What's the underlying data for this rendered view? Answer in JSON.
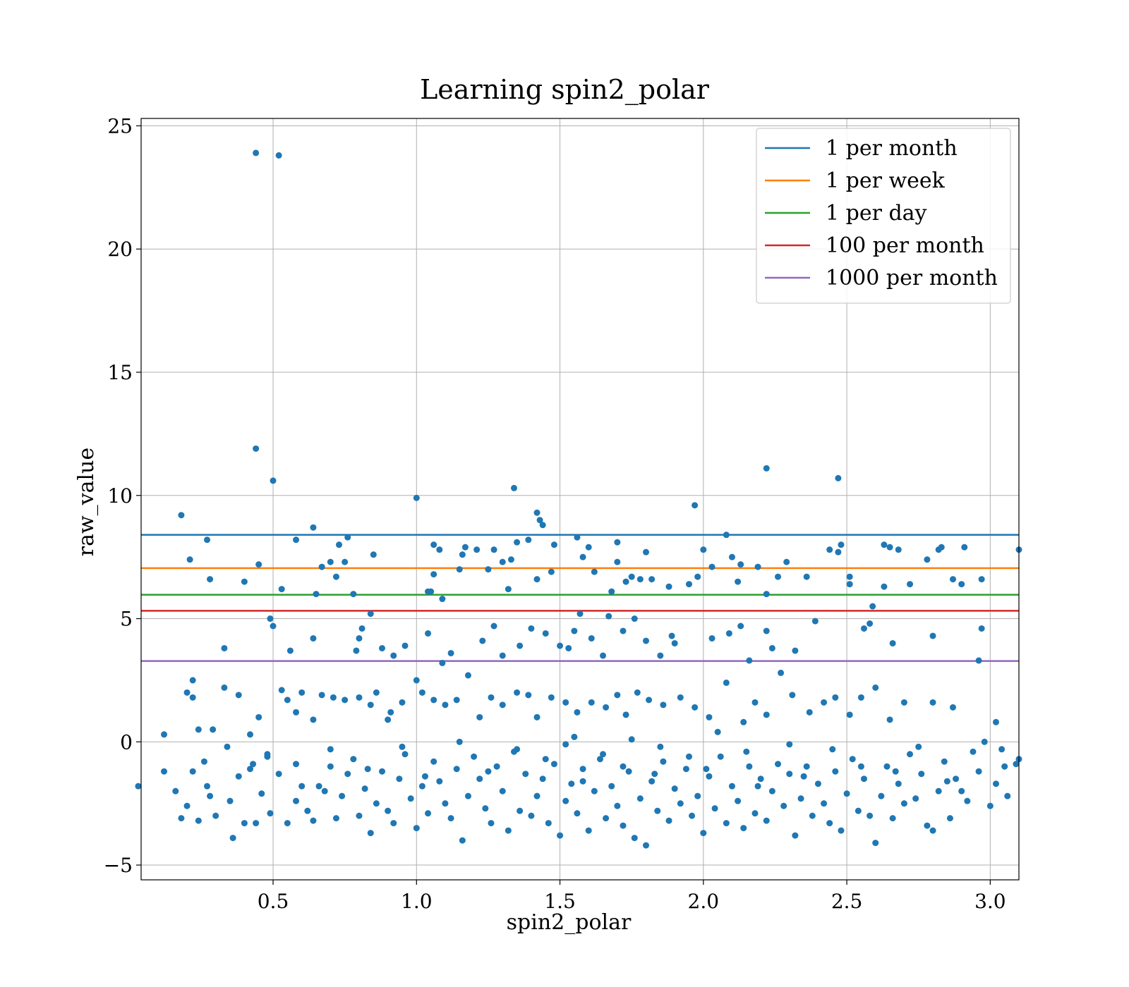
{
  "chart_data": {
    "type": "scatter",
    "title": "Learning spin2_polar",
    "xlabel": "spin2_polar",
    "ylabel": "raw_value",
    "xlim": [
      0.04,
      3.1
    ],
    "ylim": [
      -5.6,
      25.3
    ],
    "xticks": [
      0.5,
      1.0,
      1.5,
      2.0,
      2.5,
      3.0
    ],
    "xtick_labels": [
      "0.5",
      "1.0",
      "1.5",
      "2.0",
      "2.5",
      "3.0"
    ],
    "yticks": [
      -5,
      0,
      5,
      10,
      15,
      20,
      25
    ],
    "ytick_labels": [
      "−5",
      "0",
      "5",
      "10",
      "15",
      "20",
      "25"
    ],
    "grid": true,
    "legend_position": "top-right",
    "point_color": "#1f77b4",
    "thresholds": [
      {
        "name": "1 per month",
        "value": 8.4,
        "color": "#1f77b4"
      },
      {
        "name": "1 per week",
        "value": 7.05,
        "color": "#ff7f0e"
      },
      {
        "name": "1 per day",
        "value": 5.97,
        "color": "#2ca02c"
      },
      {
        "name": "100 per month",
        "value": 5.32,
        "color": "#d62728"
      },
      {
        "name": "1000 per month",
        "value": 3.28,
        "color": "#9467bd"
      }
    ],
    "points": [
      [
        0.44,
        23.9
      ],
      [
        0.52,
        23.8
      ],
      [
        0.44,
        11.9
      ],
      [
        0.5,
        10.6
      ],
      [
        0.18,
        9.2
      ],
      [
        1.0,
        9.9
      ],
      [
        1.34,
        10.3
      ],
      [
        1.42,
        9.3
      ],
      [
        1.43,
        9.0
      ],
      [
        1.44,
        8.8
      ],
      [
        1.97,
        9.6
      ],
      [
        2.22,
        11.1
      ],
      [
        2.47,
        10.7
      ],
      [
        0.27,
        8.2
      ],
      [
        0.58,
        8.2
      ],
      [
        0.64,
        8.7
      ],
      [
        0.76,
        8.3
      ],
      [
        0.73,
        8.0
      ],
      [
        0.21,
        7.4
      ],
      [
        0.45,
        7.2
      ],
      [
        0.4,
        6.5
      ],
      [
        0.28,
        6.6
      ],
      [
        0.53,
        6.2
      ],
      [
        0.65,
        6.0
      ],
      [
        0.67,
        7.1
      ],
      [
        0.7,
        7.3
      ],
      [
        0.72,
        6.7
      ],
      [
        0.75,
        7.3
      ],
      [
        0.78,
        6.0
      ],
      [
        0.85,
        7.6
      ],
      [
        1.06,
        8.0
      ],
      [
        1.08,
        7.8
      ],
      [
        1.06,
        6.8
      ],
      [
        1.04,
        6.1
      ],
      [
        1.05,
        6.1
      ],
      [
        1.09,
        5.8
      ],
      [
        1.15,
        7.0
      ],
      [
        1.16,
        7.6
      ],
      [
        1.17,
        7.9
      ],
      [
        1.21,
        7.8
      ],
      [
        1.25,
        7.0
      ],
      [
        1.27,
        7.8
      ],
      [
        1.3,
        7.3
      ],
      [
        1.33,
        7.4
      ],
      [
        1.35,
        8.1
      ],
      [
        1.32,
        6.2
      ],
      [
        1.39,
        8.2
      ],
      [
        1.42,
        6.6
      ],
      [
        1.48,
        8.0
      ],
      [
        1.47,
        6.9
      ],
      [
        1.56,
        8.3
      ],
      [
        1.58,
        7.5
      ],
      [
        1.6,
        7.9
      ],
      [
        1.62,
        6.9
      ],
      [
        1.7,
        8.1
      ],
      [
        1.7,
        7.3
      ],
      [
        1.68,
        6.1
      ],
      [
        1.73,
        6.5
      ],
      [
        1.75,
        6.7
      ],
      [
        1.78,
        6.6
      ],
      [
        1.8,
        7.7
      ],
      [
        1.82,
        6.6
      ],
      [
        1.88,
        6.3
      ],
      [
        1.95,
        6.4
      ],
      [
        1.98,
        6.7
      ],
      [
        2.0,
        7.8
      ],
      [
        2.03,
        7.1
      ],
      [
        2.08,
        8.4
      ],
      [
        2.1,
        7.5
      ],
      [
        2.12,
        6.5
      ],
      [
        2.13,
        7.2
      ],
      [
        2.19,
        7.1
      ],
      [
        2.22,
        6.0
      ],
      [
        2.26,
        6.7
      ],
      [
        2.29,
        7.3
      ],
      [
        2.36,
        6.7
      ],
      [
        2.44,
        7.8
      ],
      [
        2.47,
        7.7
      ],
      [
        2.48,
        8.0
      ],
      [
        2.51,
        6.7
      ],
      [
        2.51,
        6.4
      ],
      [
        2.63,
        8.0
      ],
      [
        2.65,
        7.9
      ],
      [
        2.68,
        7.8
      ],
      [
        2.72,
        6.4
      ],
      [
        2.78,
        7.4
      ],
      [
        2.82,
        7.8
      ],
      [
        2.83,
        7.9
      ],
      [
        2.87,
        6.6
      ],
      [
        2.9,
        6.4
      ],
      [
        2.91,
        7.9
      ],
      [
        2.97,
        6.6
      ],
      [
        3.1,
        7.8
      ],
      [
        2.63,
        6.3
      ],
      [
        2.59,
        5.5
      ],
      [
        0.49,
        5.0
      ],
      [
        0.5,
        4.7
      ],
      [
        0.33,
        3.8
      ],
      [
        0.56,
        3.7
      ],
      [
        0.64,
        4.2
      ],
      [
        0.84,
        5.2
      ],
      [
        0.81,
        4.6
      ],
      [
        0.8,
        4.2
      ],
      [
        0.79,
        3.7
      ],
      [
        0.88,
        3.8
      ],
      [
        0.92,
        3.5
      ],
      [
        0.96,
        3.9
      ],
      [
        1.04,
        4.4
      ],
      [
        1.09,
        3.2
      ],
      [
        1.12,
        3.6
      ],
      [
        1.23,
        4.1
      ],
      [
        1.27,
        4.7
      ],
      [
        1.3,
        3.5
      ],
      [
        1.36,
        3.9
      ],
      [
        1.4,
        4.6
      ],
      [
        1.45,
        4.4
      ],
      [
        1.5,
        3.9
      ],
      [
        1.53,
        3.8
      ],
      [
        1.55,
        4.5
      ],
      [
        1.57,
        5.2
      ],
      [
        1.61,
        4.2
      ],
      [
        1.65,
        3.5
      ],
      [
        1.67,
        5.1
      ],
      [
        1.72,
        4.5
      ],
      [
        1.76,
        5.0
      ],
      [
        1.8,
        4.1
      ],
      [
        1.85,
        3.5
      ],
      [
        1.89,
        4.3
      ],
      [
        1.9,
        4.0
      ],
      [
        2.03,
        4.2
      ],
      [
        2.09,
        4.4
      ],
      [
        2.13,
        4.7
      ],
      [
        2.22,
        4.5
      ],
      [
        2.24,
        3.8
      ],
      [
        2.32,
        3.7
      ],
      [
        2.39,
        4.9
      ],
      [
        2.56,
        4.6
      ],
      [
        2.58,
        4.8
      ],
      [
        2.66,
        4.0
      ],
      [
        2.8,
        4.3
      ],
      [
        2.97,
        4.6
      ],
      [
        2.96,
        3.3
      ],
      [
        2.16,
        3.3
      ],
      [
        0.2,
        2.0
      ],
      [
        0.22,
        1.8
      ],
      [
        0.22,
        2.5
      ],
      [
        0.24,
        0.5
      ],
      [
        0.29,
        0.5
      ],
      [
        0.33,
        2.2
      ],
      [
        0.38,
        1.9
      ],
      [
        0.45,
        1.0
      ],
      [
        0.53,
        2.1
      ],
      [
        0.55,
        1.7
      ],
      [
        0.58,
        1.2
      ],
      [
        0.6,
        2.0
      ],
      [
        0.64,
        0.9
      ],
      [
        0.67,
        1.9
      ],
      [
        0.71,
        1.8
      ],
      [
        0.75,
        1.7
      ],
      [
        0.8,
        1.8
      ],
      [
        0.84,
        1.5
      ],
      [
        0.86,
        2.0
      ],
      [
        0.91,
        1.2
      ],
      [
        0.95,
        1.6
      ],
      [
        1.0,
        2.5
      ],
      [
        1.02,
        2.0
      ],
      [
        1.06,
        1.7
      ],
      [
        1.1,
        1.5
      ],
      [
        1.14,
        1.7
      ],
      [
        1.18,
        2.7
      ],
      [
        1.22,
        1.0
      ],
      [
        1.26,
        1.8
      ],
      [
        1.3,
        1.5
      ],
      [
        1.35,
        2.0
      ],
      [
        1.39,
        1.9
      ],
      [
        1.42,
        1.0
      ],
      [
        1.47,
        1.8
      ],
      [
        1.52,
        1.6
      ],
      [
        1.56,
        1.2
      ],
      [
        1.61,
        1.6
      ],
      [
        1.66,
        1.4
      ],
      [
        1.7,
        1.9
      ],
      [
        1.73,
        1.1
      ],
      [
        1.77,
        2.0
      ],
      [
        1.81,
        1.7
      ],
      [
        1.86,
        1.5
      ],
      [
        1.92,
        1.8
      ],
      [
        1.97,
        1.4
      ],
      [
        2.02,
        1.0
      ],
      [
        2.08,
        2.4
      ],
      [
        2.14,
        0.8
      ],
      [
        2.18,
        1.6
      ],
      [
        2.22,
        1.1
      ],
      [
        2.27,
        2.8
      ],
      [
        2.31,
        1.9
      ],
      [
        2.37,
        1.2
      ],
      [
        2.42,
        1.6
      ],
      [
        2.46,
        1.8
      ],
      [
        2.51,
        1.1
      ],
      [
        2.55,
        1.8
      ],
      [
        2.6,
        2.2
      ],
      [
        2.7,
        1.6
      ],
      [
        2.8,
        1.6
      ],
      [
        2.87,
        1.4
      ],
      [
        3.02,
        0.8
      ],
      [
        0.12,
        0.3
      ],
      [
        0.42,
        0.3
      ],
      [
        0.9,
        0.9
      ],
      [
        1.55,
        0.2
      ],
      [
        2.05,
        0.4
      ],
      [
        2.65,
        0.9
      ],
      [
        0.03,
        -1.8
      ],
      [
        0.12,
        -1.2
      ],
      [
        0.16,
        -2.0
      ],
      [
        0.18,
        -3.1
      ],
      [
        0.2,
        -2.6
      ],
      [
        0.22,
        -1.2
      ],
      [
        0.24,
        -3.2
      ],
      [
        0.26,
        -0.8
      ],
      [
        0.27,
        -1.8
      ],
      [
        0.28,
        -2.2
      ],
      [
        0.3,
        -3.0
      ],
      [
        0.34,
        -0.2
      ],
      [
        0.35,
        -2.4
      ],
      [
        0.36,
        -3.9
      ],
      [
        0.38,
        -1.4
      ],
      [
        0.4,
        -3.3
      ],
      [
        0.42,
        -1.1
      ],
      [
        0.43,
        -0.9
      ],
      [
        0.44,
        -3.3
      ],
      [
        0.46,
        -2.1
      ],
      [
        0.48,
        -0.5
      ],
      [
        0.49,
        -2.9
      ],
      [
        0.52,
        -1.3
      ],
      [
        0.55,
        -3.3
      ],
      [
        0.58,
        -2.4
      ],
      [
        0.6,
        -1.8
      ],
      [
        0.62,
        -2.8
      ],
      [
        0.64,
        -3.2
      ],
      [
        0.66,
        -1.8
      ],
      [
        0.68,
        -2.0
      ],
      [
        0.7,
        -1.0
      ],
      [
        0.72,
        -3.1
      ],
      [
        0.74,
        -2.2
      ],
      [
        0.76,
        -1.3
      ],
      [
        0.78,
        -0.7
      ],
      [
        0.8,
        -3.0
      ],
      [
        0.82,
        -1.9
      ],
      [
        0.84,
        -3.7
      ],
      [
        0.86,
        -2.5
      ],
      [
        0.88,
        -1.2
      ],
      [
        0.9,
        -2.8
      ],
      [
        0.92,
        -3.3
      ],
      [
        0.94,
        -1.5
      ],
      [
        0.96,
        -0.5
      ],
      [
        0.98,
        -2.3
      ],
      [
        1.0,
        -3.5
      ],
      [
        1.02,
        -1.8
      ],
      [
        1.04,
        -2.9
      ],
      [
        1.06,
        -0.8
      ],
      [
        1.08,
        -1.6
      ],
      [
        1.1,
        -2.5
      ],
      [
        1.12,
        -3.1
      ],
      [
        1.14,
        -1.1
      ],
      [
        1.16,
        -4.0
      ],
      [
        1.18,
        -2.2
      ],
      [
        1.2,
        -0.6
      ],
      [
        1.22,
        -1.5
      ],
      [
        1.24,
        -2.7
      ],
      [
        1.26,
        -3.3
      ],
      [
        1.28,
        -1.0
      ],
      [
        1.3,
        -2.0
      ],
      [
        1.32,
        -3.6
      ],
      [
        1.34,
        -0.4
      ],
      [
        1.36,
        -2.8
      ],
      [
        1.38,
        -1.3
      ],
      [
        1.4,
        -3.0
      ],
      [
        1.42,
        -2.2
      ],
      [
        1.44,
        -1.5
      ],
      [
        1.46,
        -3.3
      ],
      [
        1.48,
        -0.9
      ],
      [
        1.5,
        -3.8
      ],
      [
        1.52,
        -2.4
      ],
      [
        1.54,
        -1.7
      ],
      [
        1.56,
        -2.9
      ],
      [
        1.58,
        -1.1
      ],
      [
        1.6,
        -3.6
      ],
      [
        1.62,
        -2.0
      ],
      [
        1.64,
        -0.7
      ],
      [
        1.66,
        -3.1
      ],
      [
        1.68,
        -1.8
      ],
      [
        1.7,
        -2.6
      ],
      [
        1.72,
        -3.4
      ],
      [
        1.74,
        -1.2
      ],
      [
        1.76,
        -3.9
      ],
      [
        1.78,
        -2.3
      ],
      [
        1.8,
        -4.2
      ],
      [
        1.82,
        -1.6
      ],
      [
        1.84,
        -2.8
      ],
      [
        1.86,
        -0.8
      ],
      [
        1.88,
        -3.2
      ],
      [
        1.9,
        -1.9
      ],
      [
        1.92,
        -2.5
      ],
      [
        1.94,
        -1.1
      ],
      [
        1.96,
        -3.0
      ],
      [
        1.98,
        -2.2
      ],
      [
        2.0,
        -3.7
      ],
      [
        2.02,
        -1.4
      ],
      [
        2.04,
        -2.7
      ],
      [
        2.06,
        -0.6
      ],
      [
        2.08,
        -3.3
      ],
      [
        2.1,
        -1.8
      ],
      [
        2.12,
        -2.4
      ],
      [
        2.14,
        -3.5
      ],
      [
        2.16,
        -1.0
      ],
      [
        2.18,
        -2.9
      ],
      [
        2.2,
        -1.5
      ],
      [
        2.22,
        -3.2
      ],
      [
        2.24,
        -2.0
      ],
      [
        2.26,
        -0.9
      ],
      [
        2.28,
        -2.6
      ],
      [
        2.3,
        -1.3
      ],
      [
        2.32,
        -3.8
      ],
      [
        2.34,
        -2.3
      ],
      [
        2.36,
        -1.0
      ],
      [
        2.38,
        -3.0
      ],
      [
        2.4,
        -1.7
      ],
      [
        2.42,
        -2.5
      ],
      [
        2.44,
        -3.3
      ],
      [
        2.46,
        -1.2
      ],
      [
        2.48,
        -3.6
      ],
      [
        2.5,
        -2.1
      ],
      [
        2.52,
        -0.7
      ],
      [
        2.54,
        -2.8
      ],
      [
        2.56,
        -1.5
      ],
      [
        2.58,
        -3.0
      ],
      [
        2.6,
        -4.1
      ],
      [
        2.62,
        -2.2
      ],
      [
        2.64,
        -1.0
      ],
      [
        2.66,
        -3.1
      ],
      [
        2.68,
        -1.7
      ],
      [
        2.7,
        -2.5
      ],
      [
        2.72,
        -0.5
      ],
      [
        2.74,
        -2.3
      ],
      [
        2.76,
        -1.3
      ],
      [
        2.78,
        -3.4
      ],
      [
        2.8,
        -3.6
      ],
      [
        2.82,
        -2.0
      ],
      [
        2.84,
        -0.8
      ],
      [
        2.86,
        -3.1
      ],
      [
        2.88,
        -1.5
      ],
      [
        2.9,
        -2.0
      ],
      [
        2.92,
        -2.4
      ],
      [
        2.94,
        -0.4
      ],
      [
        2.96,
        -1.2
      ],
      [
        3.0,
        -2.6
      ],
      [
        3.02,
        -1.7
      ],
      [
        3.04,
        -0.3
      ],
      [
        3.06,
        -2.2
      ],
      [
        3.09,
        -0.9
      ],
      [
        3.1,
        -0.7
      ],
      [
        0.48,
        -0.6
      ],
      [
        0.7,
        -0.3
      ],
      [
        0.95,
        -0.2
      ],
      [
        1.15,
        0.0
      ],
      [
        1.35,
        -0.3
      ],
      [
        1.52,
        -0.1
      ],
      [
        1.65,
        -0.5
      ],
      [
        1.75,
        0.1
      ],
      [
        1.85,
        -0.2
      ],
      [
        1.95,
        -0.6
      ],
      [
        2.15,
        -0.4
      ],
      [
        2.3,
        -0.1
      ],
      [
        2.45,
        -0.3
      ],
      [
        2.75,
        -0.2
      ],
      [
        2.98,
        0.0
      ],
      [
        0.58,
        -0.9
      ],
      [
        0.83,
        -1.1
      ],
      [
        1.03,
        -1.4
      ],
      [
        1.25,
        -1.2
      ],
      [
        1.45,
        -0.7
      ],
      [
        1.58,
        -1.6
      ],
      [
        1.72,
        -1.0
      ],
      [
        1.83,
        -1.3
      ],
      [
        2.01,
        -1.1
      ],
      [
        2.19,
        -1.8
      ],
      [
        2.35,
        -1.4
      ],
      [
        2.55,
        -1.0
      ],
      [
        2.67,
        -1.2
      ],
      [
        2.85,
        -1.6
      ],
      [
        3.05,
        -1.0
      ]
    ]
  }
}
